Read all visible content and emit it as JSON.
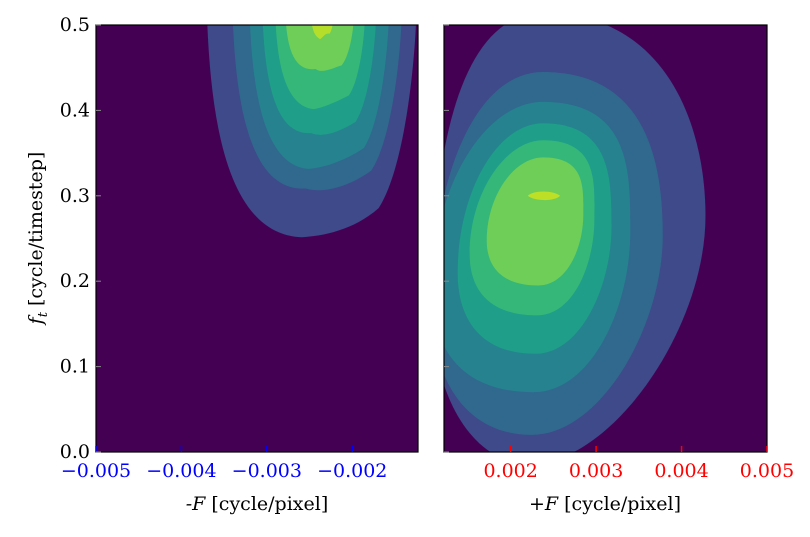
{
  "chart_data": [
    {
      "type": "heatmap",
      "panel": "left",
      "xlabel_prefix": "-F",
      "xlabel_unit": " [cycle/pixel]",
      "ylabel_var": "f",
      "ylabel_sub": "t",
      "ylabel_unit": " [cycle/timestep]",
      "xlim": [
        -0.005,
        -0.00123
      ],
      "ylim": [
        0.0,
        0.5
      ],
      "xticks": [
        {
          "value": -0.005,
          "label": "−0.005"
        },
        {
          "value": -0.004,
          "label": "−0.004"
        },
        {
          "value": -0.003,
          "label": "−0.003"
        },
        {
          "value": -0.002,
          "label": "−0.002"
        }
      ],
      "yticks": [
        {
          "value": 0.0,
          "label": "0.0"
        },
        {
          "value": 0.1,
          "label": "0.1"
        },
        {
          "value": 0.2,
          "label": "0.2"
        },
        {
          "value": 0.3,
          "label": "0.3"
        },
        {
          "value": 0.4,
          "label": "0.4"
        },
        {
          "value": 0.5,
          "label": "0.5"
        }
      ],
      "tick_color": "#0000ff",
      "peak": {
        "x": -0.00235,
        "y": 0.5
      },
      "levels": [
        {
          "level": 1,
          "color": "#3e4a89",
          "y_bottom": 0.255,
          "x_left": -0.0037,
          "x_right": -0.00125
        },
        {
          "level": 2,
          "color": "#31688e",
          "y_bottom": 0.305,
          "x_left": -0.0034,
          "x_right": -0.00142
        },
        {
          "level": 3,
          "color": "#26828e",
          "y_bottom": 0.335,
          "x_left": -0.0032,
          "x_right": -0.00157
        },
        {
          "level": 4,
          "color": "#1f9e89",
          "y_bottom": 0.37,
          "x_left": -0.00305,
          "x_right": -0.00172
        },
        {
          "level": 5,
          "color": "#35b779",
          "y_bottom": 0.405,
          "x_left": -0.0029,
          "x_right": -0.00185
        },
        {
          "level": 6,
          "color": "#6ece58",
          "y_bottom": 0.445,
          "x_left": -0.00278,
          "x_right": -0.00198
        },
        {
          "level": 7,
          "color": "#b5de2b",
          "y_bottom": 0.487,
          "x_left": -0.00248,
          "x_right": -0.00222
        }
      ]
    },
    {
      "type": "heatmap",
      "panel": "right",
      "xlabel_prefix": "+F",
      "xlabel_unit": " [cycle/pixel]",
      "xlim": [
        0.00122,
        0.005
      ],
      "ylim": [
        0.0,
        0.5
      ],
      "xticks": [
        {
          "value": 0.002,
          "label": "0.002"
        },
        {
          "value": 0.003,
          "label": "0.003"
        },
        {
          "value": 0.004,
          "label": "0.004"
        },
        {
          "value": 0.005,
          "label": "0.005"
        }
      ],
      "tick_color": "#ff0000",
      "peak": {
        "x": 0.00238,
        "y": 0.3
      },
      "levels": [
        {
          "level": 1,
          "color": "#3e4a89",
          "x_left": 0.00122,
          "x_right": 0.00428,
          "y_bottom": 0.0,
          "y_top": 0.5
        },
        {
          "level": 2,
          "color": "#31688e",
          "x_left": 0.00122,
          "x_right": 0.00378,
          "y_bottom": 0.02,
          "y_top": 0.445
        },
        {
          "level": 3,
          "color": "#26828e",
          "x_left": 0.00122,
          "x_right": 0.0034,
          "y_bottom": 0.07,
          "y_top": 0.41
        },
        {
          "level": 4,
          "color": "#1f9e89",
          "x_left": 0.00138,
          "x_right": 0.00318,
          "y_bottom": 0.115,
          "y_top": 0.385
        },
        {
          "level": 5,
          "color": "#35b779",
          "x_left": 0.00152,
          "x_right": 0.00298,
          "y_bottom": 0.16,
          "y_top": 0.365
        },
        {
          "level": 6,
          "color": "#6ece58",
          "x_left": 0.00172,
          "x_right": 0.00285,
          "y_bottom": 0.195,
          "y_top": 0.345
        },
        {
          "level": 7,
          "color": "#bddf26",
          "x_left": 0.0022,
          "x_right": 0.00258,
          "y_bottom": 0.295,
          "y_top": 0.305
        }
      ]
    }
  ],
  "background_color": "#440154"
}
